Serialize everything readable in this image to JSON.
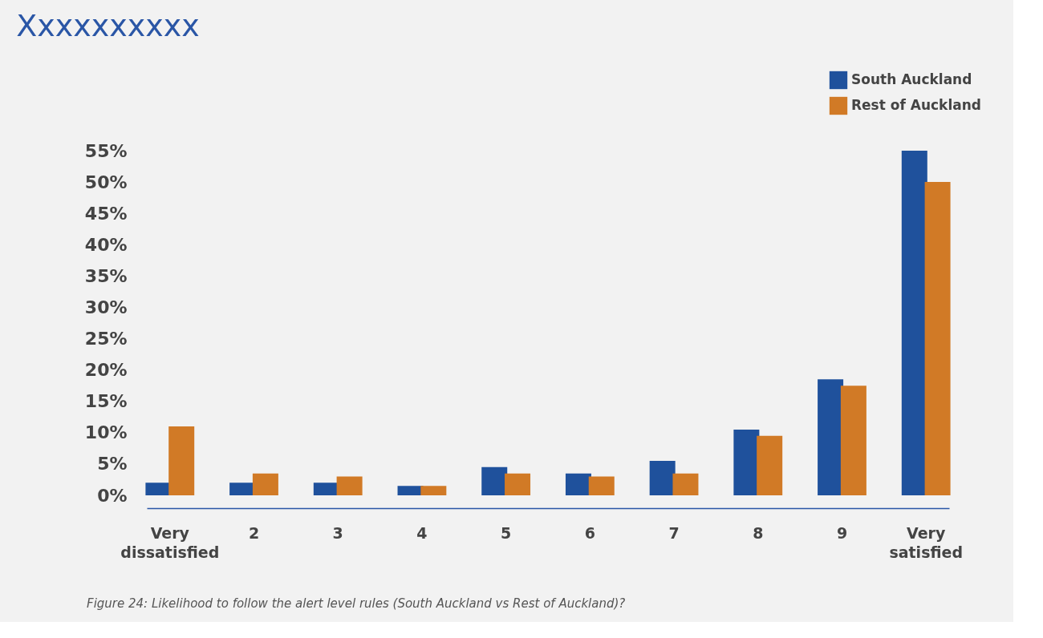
{
  "chart_data": {
    "type": "bar",
    "title": "Xxxxxxxxxx",
    "categories": [
      "Very dissatisfied",
      "2",
      "3",
      "4",
      "5",
      "6",
      "7",
      "8",
      "9",
      "Very satisfied"
    ],
    "series": [
      {
        "name": "South Auckland",
        "color": "#1f519c",
        "values": [
          2,
          2,
          2,
          1.5,
          4.5,
          3.5,
          5.5,
          10.5,
          18.5,
          55
        ]
      },
      {
        "name": "Rest of Auckland",
        "color": "#d17a26",
        "values": [
          11,
          3.5,
          3,
          1.5,
          3.5,
          3,
          3.5,
          9.5,
          17.5,
          50
        ]
      }
    ],
    "ylim": [
      0,
      55
    ],
    "yticks": [
      {
        "value": 0,
        "label": "0%"
      },
      {
        "value": 5,
        "label": "5%"
      },
      {
        "value": 10,
        "label": "10%"
      },
      {
        "value": 15,
        "label": "15%"
      },
      {
        "value": 20,
        "label": "20%"
      },
      {
        "value": 25,
        "label": "25%"
      },
      {
        "value": 30,
        "label": "30%"
      },
      {
        "value": 35,
        "label": "35%"
      },
      {
        "value": 40,
        "label": "40%"
      },
      {
        "value": 45,
        "label": "45%"
      },
      {
        "value": 50,
        "label": "50%"
      },
      {
        "value": 55,
        "label": "55%"
      }
    ],
    "grid": false,
    "legend": "top right",
    "annotations": [
      "Figure 24: Likelihood to follow the alert level rules (South Auckland vs Rest of Auckland)?"
    ]
  }
}
